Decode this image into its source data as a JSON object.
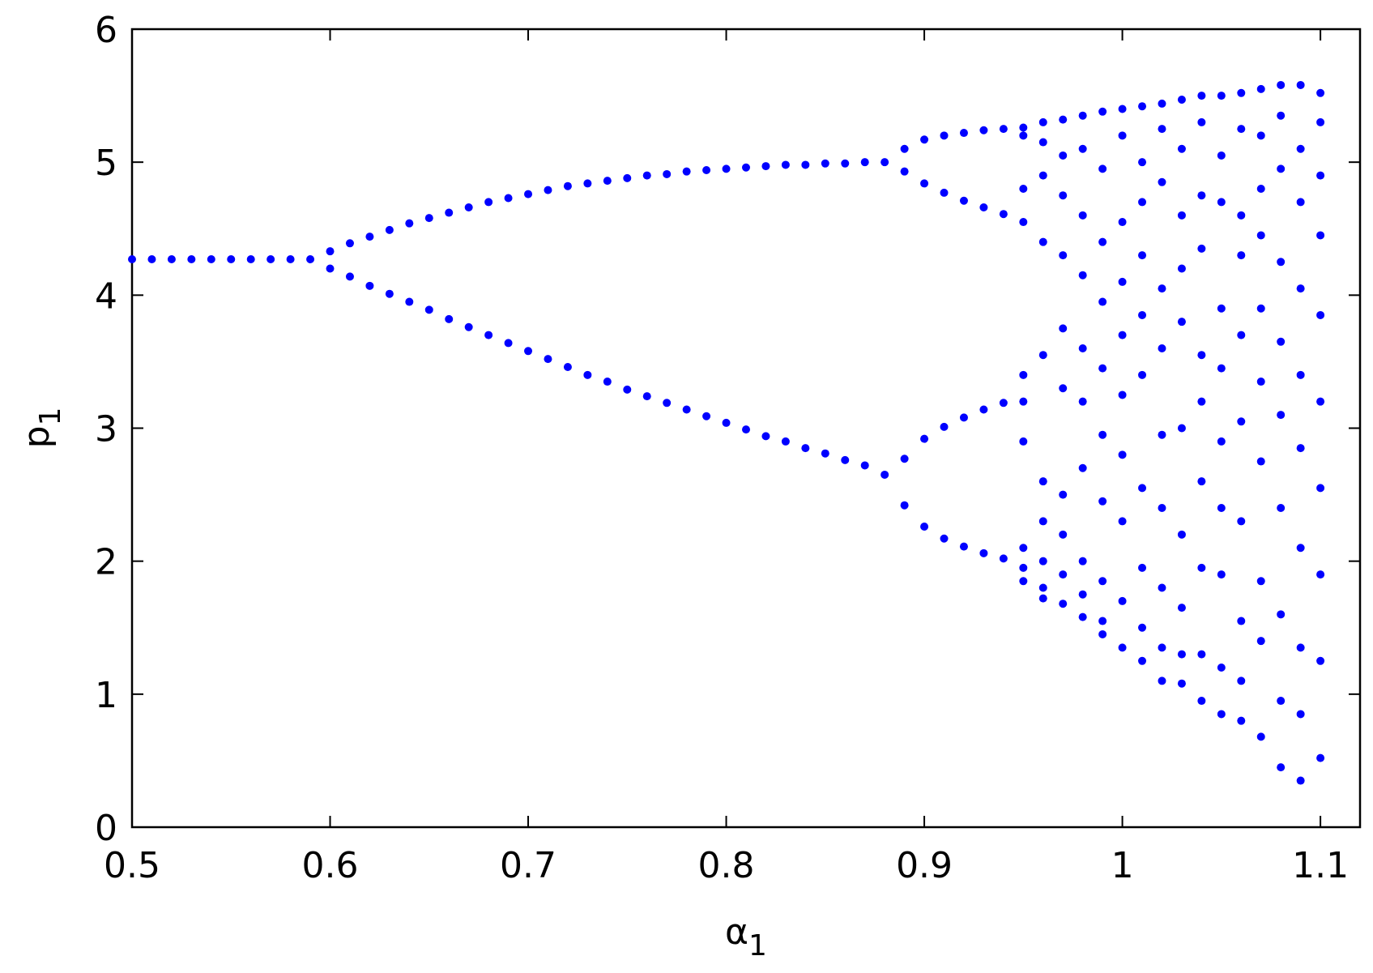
{
  "chart_data": {
    "type": "scatter",
    "xlabel": "α",
    "xlabel_sub": "1",
    "ylabel": "p",
    "ylabel_sub": "1",
    "color": "#0000ff",
    "xlim": [
      0.5,
      1.12
    ],
    "xticks": [
      0.5,
      0.6,
      0.7,
      0.8,
      0.9,
      1,
      1.1
    ],
    "ylim": [
      0,
      6
    ],
    "yticks": [
      0,
      1,
      2,
      3,
      4,
      5,
      6
    ],
    "grid": false,
    "x": [
      0.5,
      0.51,
      0.52,
      0.53,
      0.54,
      0.55,
      0.56,
      0.57,
      0.58,
      0.59,
      0.6,
      0.61,
      0.62,
      0.63,
      0.64,
      0.65,
      0.66,
      0.67,
      0.68,
      0.69,
      0.7,
      0.71,
      0.72,
      0.73,
      0.74,
      0.75,
      0.76,
      0.77,
      0.78,
      0.79,
      0.8,
      0.81,
      0.82,
      0.83,
      0.84,
      0.85,
      0.86,
      0.87,
      0.88,
      0.6,
      0.61,
      0.62,
      0.63,
      0.64,
      0.65,
      0.66,
      0.67,
      0.68,
      0.69,
      0.7,
      0.71,
      0.72,
      0.73,
      0.74,
      0.75,
      0.76,
      0.77,
      0.78,
      0.79,
      0.8,
      0.81,
      0.82,
      0.83,
      0.84,
      0.85,
      0.86,
      0.87,
      0.88,
      0.89,
      0.9,
      0.91,
      0.92,
      0.93,
      0.94,
      0.89,
      0.9,
      0.91,
      0.92,
      0.93,
      0.94,
      0.89,
      0.9,
      0.91,
      0.92,
      0.93,
      0.94,
      0.89,
      0.9,
      0.91,
      0.92,
      0.93,
      0.94,
      0.95,
      0.95,
      0.95,
      0.95,
      0.95,
      0.95,
      0.95,
      0.95,
      0.95,
      0.95,
      0.96,
      0.96,
      0.96,
      0.96,
      0.96,
      0.96,
      0.96,
      0.96,
      0.96,
      0.96,
      0.97,
      0.97,
      0.97,
      0.97,
      0.97,
      0.97,
      0.97,
      0.97,
      0.97,
      0.97,
      0.98,
      0.98,
      0.98,
      0.98,
      0.98,
      0.98,
      0.98,
      0.98,
      0.98,
      0.98,
      0.99,
      0.99,
      0.99,
      0.99,
      0.99,
      0.99,
      0.99,
      0.99,
      0.99,
      0.99,
      1.0,
      1.0,
      1.0,
      1.0,
      1.0,
      1.0,
      1.0,
      1.0,
      1.0,
      1.0,
      1.01,
      1.01,
      1.01,
      1.01,
      1.01,
      1.01,
      1.01,
      1.01,
      1.01,
      1.01,
      1.02,
      1.02,
      1.02,
      1.02,
      1.02,
      1.02,
      1.02,
      1.02,
      1.02,
      1.02,
      1.03,
      1.03,
      1.03,
      1.03,
      1.03,
      1.03,
      1.03,
      1.03,
      1.03,
      1.03,
      1.04,
      1.04,
      1.04,
      1.04,
      1.04,
      1.04,
      1.04,
      1.04,
      1.04,
      1.04,
      1.05,
      1.05,
      1.05,
      1.05,
      1.05,
      1.05,
      1.05,
      1.05,
      1.05,
      1.05,
      1.06,
      1.06,
      1.06,
      1.06,
      1.06,
      1.06,
      1.06,
      1.06,
      1.06,
      1.06,
      1.07,
      1.07,
      1.07,
      1.07,
      1.07,
      1.07,
      1.07,
      1.07,
      1.07,
      1.07,
      1.08,
      1.08,
      1.08,
      1.08,
      1.08,
      1.08,
      1.08,
      1.08,
      1.08,
      1.08,
      1.09,
      1.09,
      1.09,
      1.09,
      1.09,
      1.09,
      1.09,
      1.09,
      1.09,
      1.09,
      1.1,
      1.1,
      1.1,
      1.1,
      1.1,
      1.1,
      1.1,
      1.1,
      1.1,
      1.1
    ],
    "values": [
      4.27,
      4.27,
      4.27,
      4.27,
      4.27,
      4.27,
      4.27,
      4.27,
      4.27,
      4.27,
      4.33,
      4.39,
      4.44,
      4.49,
      4.54,
      4.58,
      4.62,
      4.66,
      4.7,
      4.73,
      4.76,
      4.79,
      4.82,
      4.84,
      4.86,
      4.88,
      4.9,
      4.91,
      4.93,
      4.94,
      4.95,
      4.96,
      4.97,
      4.98,
      4.98,
      4.99,
      4.99,
      5.0,
      5.0,
      4.2,
      4.14,
      4.07,
      4.01,
      3.95,
      3.89,
      3.82,
      3.76,
      3.7,
      3.64,
      3.58,
      3.52,
      3.46,
      3.4,
      3.35,
      3.29,
      3.24,
      3.19,
      3.14,
      3.09,
      3.04,
      2.99,
      2.94,
      2.9,
      2.85,
      2.81,
      2.76,
      2.72,
      2.65,
      5.1,
      5.17,
      5.2,
      5.22,
      5.24,
      5.25,
      4.93,
      4.84,
      4.77,
      4.71,
      4.66,
      4.61,
      2.77,
      2.92,
      3.01,
      3.08,
      3.14,
      3.19,
      2.42,
      2.26,
      2.17,
      2.11,
      2.06,
      2.02,
      5.26,
      5.2,
      4.8,
      4.55,
      3.4,
      3.2,
      2.9,
      2.1,
      1.95,
      1.85,
      5.3,
      5.15,
      4.9,
      4.4,
      3.55,
      2.6,
      2.3,
      2.0,
      1.8,
      1.72,
      5.32,
      5.05,
      4.75,
      4.3,
      3.75,
      3.3,
      2.5,
      2.2,
      1.9,
      1.68,
      5.35,
      5.1,
      4.6,
      4.15,
      3.6,
      3.2,
      2.7,
      2.0,
      1.75,
      1.58,
      5.38,
      4.95,
      4.4,
      3.95,
      3.45,
      2.95,
      2.45,
      1.85,
      1.55,
      1.45,
      5.4,
      5.2,
      4.55,
      4.1,
      3.7,
      3.25,
      2.8,
      2.3,
      1.7,
      1.35,
      5.42,
      5.0,
      4.7,
      4.3,
      3.85,
      3.4,
      2.55,
      1.95,
      1.5,
      1.25,
      5.44,
      5.25,
      4.85,
      4.05,
      3.6,
      2.95,
      2.4,
      1.8,
      1.35,
      1.1,
      5.47,
      5.1,
      4.6,
      4.2,
      3.8,
      3.0,
      2.2,
      1.65,
      1.3,
      1.08,
      5.5,
      5.3,
      4.75,
      4.35,
      3.55,
      3.2,
      2.6,
      1.95,
      1.3,
      0.95,
      5.5,
      5.05,
      4.7,
      3.9,
      3.45,
      2.9,
      2.4,
      1.9,
      1.2,
      0.85,
      5.52,
      5.25,
      4.6,
      4.3,
      3.7,
      3.05,
      2.3,
      1.55,
      1.1,
      0.8,
      5.55,
      5.2,
      4.8,
      4.45,
      3.9,
      3.35,
      2.75,
      1.85,
      1.4,
      0.68,
      5.58,
      5.35,
      4.95,
      4.25,
      3.65,
      3.1,
      2.4,
      1.6,
      0.95,
      0.45,
      5.58,
      5.1,
      4.7,
      4.05,
      3.4,
      2.85,
      2.1,
      1.35,
      0.85,
      0.35,
      5.52,
      5.3,
      4.9,
      4.45,
      3.85,
      3.2,
      2.55,
      1.9,
      1.25,
      0.52
    ]
  }
}
